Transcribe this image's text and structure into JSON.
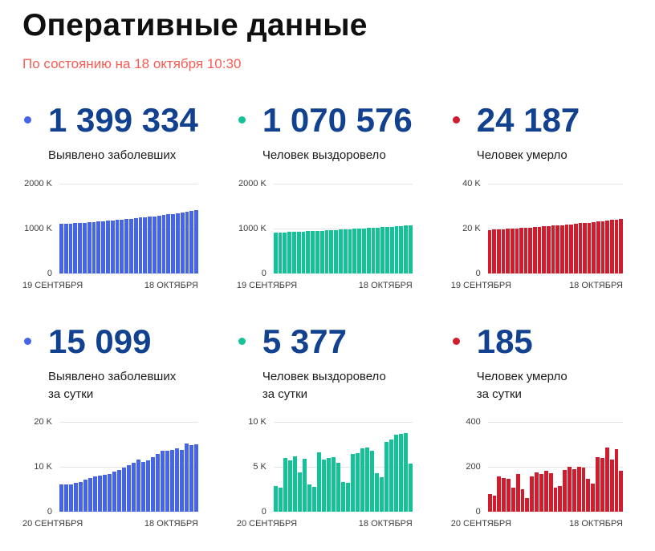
{
  "header": {
    "title": "Оперативные данные",
    "as_of": "По состоянию на 18 октября 10:30"
  },
  "panels": [
    {
      "value": "1 399 334",
      "label": "Выявлено заболевших"
    },
    {
      "value": "1 070 576",
      "label": "Человек выздоровело"
    },
    {
      "value": "24 187",
      "label": "Человек умерло"
    },
    {
      "value": "15 099",
      "label": "Выявлено заболевших\nза сутки"
    },
    {
      "value": "5 377",
      "label": "Человек выздоровело\nза сутки"
    },
    {
      "value": "185",
      "label": "Человек умерло\nза сутки"
    }
  ],
  "colors": {
    "confirmed": "#4565e6",
    "recovered": "#13c296",
    "deaths": "#cf1d2e",
    "stat_number": "#12418f",
    "as_of_text": "#fa5c54",
    "gridline": "#e4e4e4",
    "tick_text": "#3d3d3d"
  },
  "chart_data": [
    {
      "type": "bar",
      "title": "Выявлено заболевших (всего)",
      "color": "#4565e6",
      "x_start": "19 СЕНТЯБРЯ",
      "x_end": "18 ОКТЯБРЯ",
      "yticks": [
        "2000 K",
        "1000 K",
        "0"
      ],
      "ymax": 2000000,
      "grid": true,
      "values": [
        1097251,
        1103399,
        1109595,
        1115810,
        1122241,
        1128836,
        1136048,
        1143571,
        1151438,
        1159573,
        1167805,
        1176286,
        1185231,
        1194643,
        1204502,
        1215001,
        1225889,
        1237504,
        1248619,
        1260112,
        1272238,
        1285084,
        1298718,
        1312310,
        1326178,
        1340409,
        1354163,
        1369313,
        1384235,
        1399334
      ]
    },
    {
      "type": "bar",
      "title": "Человек выздоровело (всего)",
      "color": "#13c296",
      "x_start": "19 СЕНТЯБРЯ",
      "x_end": "18 ОКТЯБРЯ",
      "yticks": [
        "2000 K",
        "1000 K",
        "0"
      ],
      "ymax": 2000000,
      "grid": true,
      "values": [
        905043,
        907948,
        910620,
        916604,
        922356,
        928508,
        932869,
        938773,
        941826,
        944612,
        951216,
        957062,
        963113,
        969201,
        974690,
        978039,
        981240,
        987678,
        994265,
        1001333,
        1008513,
        1015297,
        1019572,
        1023412,
        1031166,
        1039230,
        1047807,
        1056455,
        1065199,
        1070576
      ]
    },
    {
      "type": "bar",
      "title": "Человек умерло (всего)",
      "color": "#cf1d2e",
      "x_start": "19 СЕНТЯБРЯ",
      "x_end": "18 ОКТЯБРЯ",
      "yticks": [
        "40 K",
        "20 K",
        "0"
      ],
      "ymax": 40000,
      "grid": true,
      "values": [
        19337,
        19416,
        19487,
        19647,
        19797,
        19946,
        20054,
        20223,
        20323,
        20384,
        20544,
        20721,
        20890,
        21073,
        21245,
        21352,
        21469,
        21657,
        21859,
        22050,
        22251,
        22448,
        22597,
        22722,
        22966,
        23205,
        23491,
        23723,
        24002,
        24187
      ]
    },
    {
      "type": "bar",
      "title": "Выявлено заболевших за сутки",
      "color": "#4565e6",
      "x_start": "20 СЕНТЯБРЯ",
      "x_end": "18 ОКТЯБРЯ",
      "yticks": [
        "20 K",
        "10 K",
        "0"
      ],
      "ymax": 20000,
      "grid": true,
      "values": [
        6148,
        6196,
        6215,
        6431,
        6595,
        7212,
        7523,
        7867,
        8135,
        8232,
        8481,
        8945,
        9412,
        9859,
        10499,
        10888,
        11615,
        11115,
        11493,
        12126,
        12846,
        13634,
        13592,
        13868,
        14231,
        13754,
        15150,
        14922,
        15099
      ]
    },
    {
      "type": "bar",
      "title": "Человек выздоровело за сутки",
      "color": "#13c296",
      "x_start": "20 СЕНТЯБРЯ",
      "x_end": "18 ОКТЯБРЯ",
      "yticks": [
        "10 K",
        "5 K",
        "0"
      ],
      "ymax": 10000,
      "grid": true,
      "values": [
        2905,
        2672,
        5984,
        5752,
        6152,
        4361,
        5904,
        3053,
        2786,
        6604,
        5846,
        6051,
        6088,
        5489,
        3349,
        3201,
        6438,
        6587,
        7068,
        7180,
        6784,
        4275,
        3840,
        7754,
        8064,
        8577,
        8648,
        8744,
        5377
      ]
    },
    {
      "type": "bar",
      "title": "Человек умерло за сутки",
      "color": "#cf1d2e",
      "x_start": "20 СЕНТЯБРЯ",
      "x_end": "18 ОКТЯБРЯ",
      "yticks": [
        "400",
        "200",
        "0"
      ],
      "ymax": 400,
      "grid": true,
      "values": [
        79,
        71,
        160,
        150,
        149,
        108,
        169,
        100,
        61,
        160,
        177,
        169,
        183,
        172,
        107,
        117,
        188,
        202,
        191,
        201,
        197,
        149,
        125,
        244,
        239,
        286,
        232,
        279,
        185
      ]
    }
  ]
}
